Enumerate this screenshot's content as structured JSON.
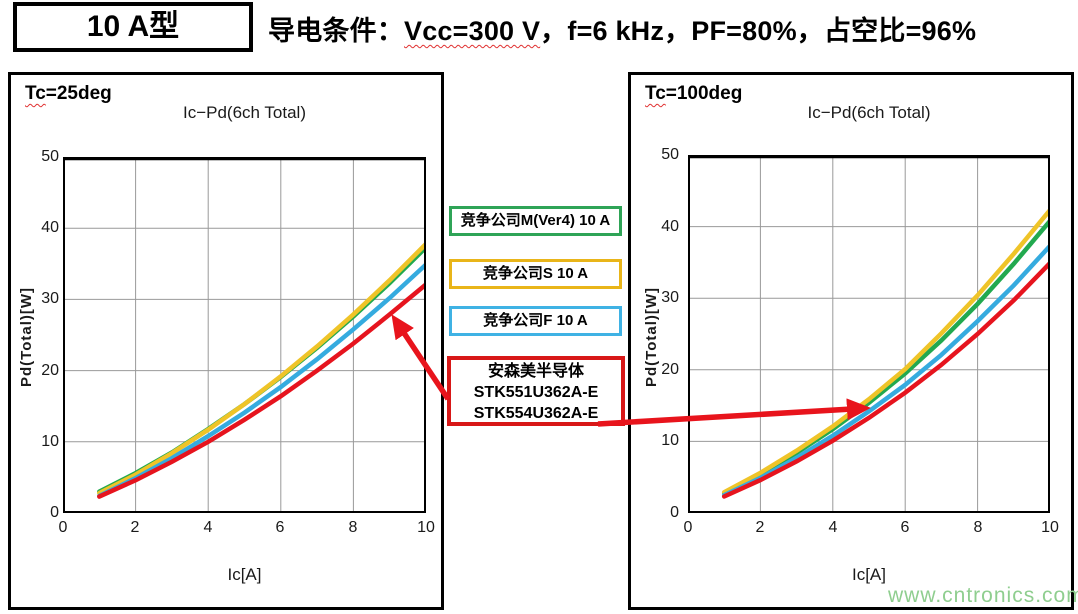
{
  "header": {
    "type_label": "10 A型",
    "condition_prefix": "导电条件：",
    "condition_vcc": "Vcc=300 V",
    "condition_rest": "，f=6 kHz，PF=80%，占空比=96%"
  },
  "legend": {
    "competitor_m": "竞争公司M(Ver4) 10 A",
    "competitor_s": "竞争公司S 10 A",
    "competitor_f": "竞争公司F 10 A",
    "onsemi_line1": "安森美半导体",
    "onsemi_line2": "STK551U362A-E",
    "onsemi_line3": "STK554U362A-E"
  },
  "watermark": "www.cntronics.com",
  "colors": {
    "series_green": "#22A94F",
    "series_yellow": "#EFC428",
    "series_blue": "#35ABDF",
    "series_red": "#E6141E",
    "legend_green_border": "#2FA457",
    "legend_yellow_border": "#E9B519",
    "legend_blue_border": "#3FB2E4",
    "legend_red_border": "#D81717",
    "annotation_arrow": "#E8141C",
    "watermark_green": "#8FCE8F"
  },
  "chart_data": [
    {
      "type": "line",
      "corner_label_prefix": "Tc",
      "corner_label_rest": "=25deg",
      "title": "Ic−Pd(6ch Total)",
      "xlabel": "Ic[A]",
      "ylabel": "Pd(Total)[W]",
      "xlim": [
        0,
        10
      ],
      "ylim": [
        0,
        50
      ],
      "xticks": [
        0,
        2,
        4,
        6,
        8,
        10
      ],
      "yticks": [
        0,
        10,
        20,
        30,
        40,
        50
      ],
      "grid": true,
      "legend_position": "outside-right",
      "x": [
        1,
        2,
        3,
        4,
        5,
        6,
        7,
        8,
        9,
        10
      ],
      "series": [
        {
          "name": "竞争公司M(Ver4) 10 A",
          "color": "#22A94F",
          "values": [
            3.0,
            5.6,
            8.5,
            11.8,
            15.3,
            19.1,
            23.2,
            27.6,
            32.3,
            37.3
          ]
        },
        {
          "name": "竞争公司S 10 A",
          "color": "#EFC428",
          "values": [
            2.8,
            5.4,
            8.4,
            11.7,
            15.3,
            19.2,
            23.4,
            27.9,
            32.7,
            37.8
          ]
        },
        {
          "name": "竞争公司F 10 A",
          "color": "#35ABDF",
          "values": [
            2.4,
            4.9,
            7.7,
            10.8,
            14.1,
            17.7,
            21.6,
            25.8,
            30.2,
            34.9
          ]
        },
        {
          "name": "安森美半导体 STK551U362A-E / STK554U362A-E",
          "color": "#E6141E",
          "values": [
            2.3,
            4.6,
            7.2,
            10.0,
            13.1,
            16.4,
            20.0,
            23.8,
            27.9,
            32.1
          ]
        }
      ]
    },
    {
      "type": "line",
      "corner_label_prefix": "Tc",
      "corner_label_rest": "=100deg",
      "title": "Ic−Pd(6ch Total)",
      "xlabel": "Ic[A]",
      "ylabel": "Pd(Total)[W]",
      "xlim": [
        0,
        10
      ],
      "ylim": [
        0,
        50
      ],
      "xticks": [
        0,
        2,
        4,
        6,
        8,
        10
      ],
      "yticks": [
        0,
        10,
        20,
        30,
        40,
        50
      ],
      "grid": true,
      "legend_position": "outside-left",
      "x": [
        1,
        2,
        3,
        4,
        5,
        6,
        7,
        8,
        9,
        10
      ],
      "series": [
        {
          "name": "竞争公司M(Ver4) 10 A",
          "color": "#22A94F",
          "values": [
            2.8,
            5.4,
            8.4,
            11.7,
            15.4,
            19.5,
            24.1,
            29.2,
            34.8,
            40.8
          ]
        },
        {
          "name": "竞争公司S 10 A",
          "color": "#EFC428",
          "values": [
            2.9,
            5.6,
            8.7,
            12.1,
            15.9,
            20.1,
            25.1,
            30.4,
            36.2,
            42.3
          ]
        },
        {
          "name": "竞争公司F 10 A",
          "color": "#35ABDF",
          "values": [
            2.5,
            4.9,
            7.7,
            10.8,
            14.2,
            17.9,
            22.1,
            26.8,
            31.8,
            37.3
          ]
        },
        {
          "name": "安森美半导体 STK551U362A-E / STK554U362A-E",
          "color": "#E6141E",
          "values": [
            2.3,
            4.6,
            7.2,
            10.1,
            13.3,
            16.8,
            20.7,
            25.0,
            29.7,
            34.9
          ]
        }
      ]
    }
  ]
}
